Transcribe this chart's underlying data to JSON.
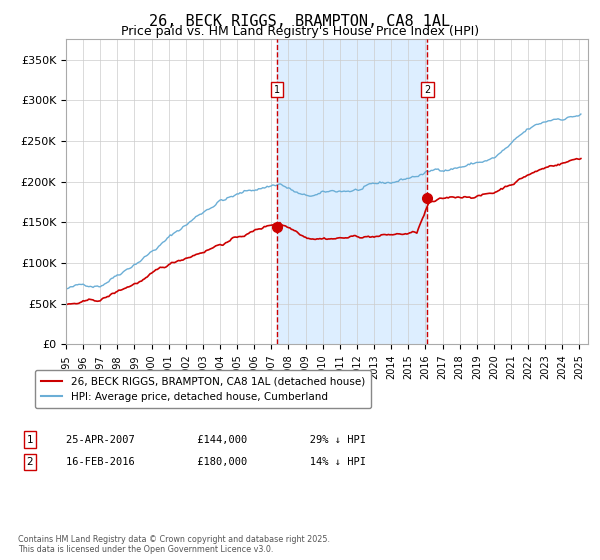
{
  "title": "26, BECK RIGGS, BRAMPTON, CA8 1AL",
  "subtitle": "Price paid vs. HM Land Registry's House Price Index (HPI)",
  "title_fontsize": 11,
  "subtitle_fontsize": 9,
  "x_start_year": 1995,
  "x_end_year": 2025,
  "y_ticks": [
    0,
    50000,
    100000,
    150000,
    200000,
    250000,
    300000,
    350000
  ],
  "y_tick_labels": [
    "£0",
    "£50K",
    "£100K",
    "£150K",
    "£200K",
    "£250K",
    "£300K",
    "£350K"
  ],
  "ylim": [
    0,
    375000
  ],
  "sale1_date": 2007.32,
  "sale1_price": 144000,
  "sale1_label": "1",
  "sale2_date": 2016.12,
  "sale2_price": 180000,
  "sale2_label": "2",
  "hpi_color": "#6baed6",
  "price_color": "#cc0000",
  "shading_color": "#ddeeff",
  "vline_color": "#cc0000",
  "background_color": "#ffffff",
  "grid_color": "#cccccc",
  "legend_label_price": "26, BECK RIGGS, BRAMPTON, CA8 1AL (detached house)",
  "legend_label_hpi": "HPI: Average price, detached house, Cumberland",
  "annotation1_date": "25-APR-2007",
  "annotation1_price": "£144,000",
  "annotation1_hpi": "29% ↓ HPI",
  "annotation2_date": "16-FEB-2016",
  "annotation2_price": "£180,000",
  "annotation2_hpi": "14% ↓ HPI",
  "footer": "Contains HM Land Registry data © Crown copyright and database right 2025.\nThis data is licensed under the Open Government Licence v3.0."
}
